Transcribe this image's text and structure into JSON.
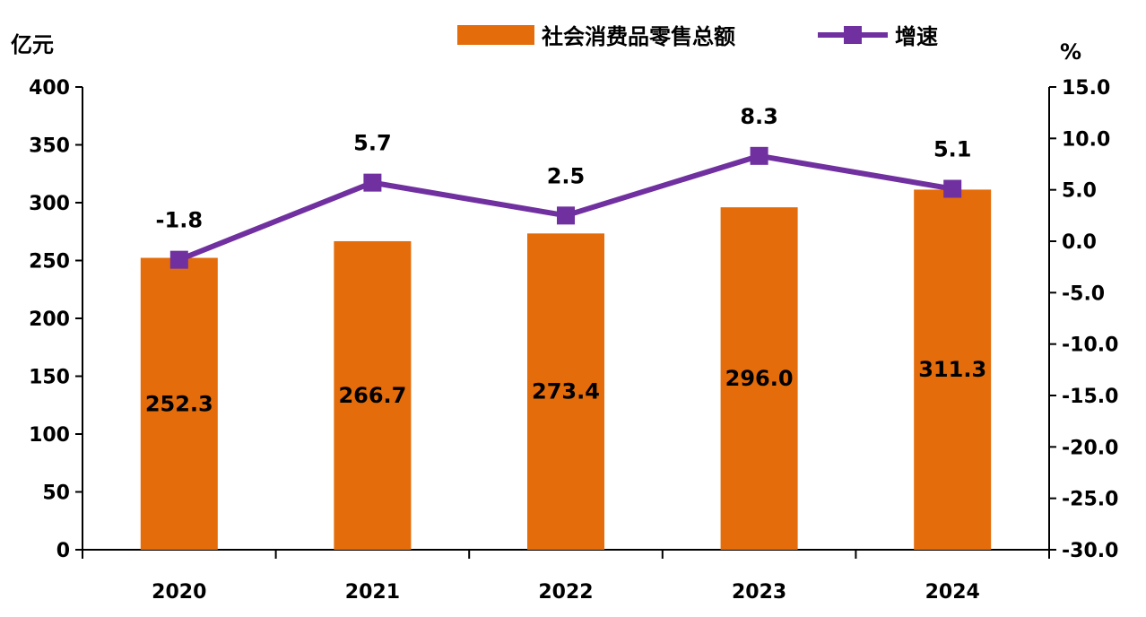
{
  "chart_data": {
    "type": "bar",
    "categories": [
      "2020",
      "2021",
      "2022",
      "2023",
      "2024"
    ],
    "series": [
      {
        "name": "社会消费品零售总额",
        "type": "bar",
        "axis": "left",
        "values": [
          252.3,
          266.7,
          273.4,
          296.0,
          311.3
        ],
        "labels": [
          "252.3",
          "266.7",
          "273.4",
          "296.0",
          "311.3"
        ],
        "color": "#E46C0A"
      },
      {
        "name": "增速",
        "type": "line",
        "axis": "right",
        "values": [
          -1.8,
          5.7,
          2.5,
          8.3,
          5.1
        ],
        "labels": [
          "-1.8",
          "5.7",
          "2.5",
          "8.3",
          "5.1"
        ],
        "color": "#7030A0"
      }
    ],
    "left_axis": {
      "unit": "亿元",
      "min": 0,
      "max": 400,
      "ticks": [
        "0",
        "50",
        "100",
        "150",
        "200",
        "250",
        "300",
        "350",
        "400"
      ]
    },
    "right_axis": {
      "unit": "%",
      "min": -30,
      "max": 15,
      "ticks": [
        "-30.0",
        "-25.0",
        "-20.0",
        "-15.0",
        "-10.0",
        "-5.0",
        "0.0",
        "5.0",
        "10.0",
        "15.0"
      ]
    },
    "legend_position": "top-center",
    "grid": false
  }
}
